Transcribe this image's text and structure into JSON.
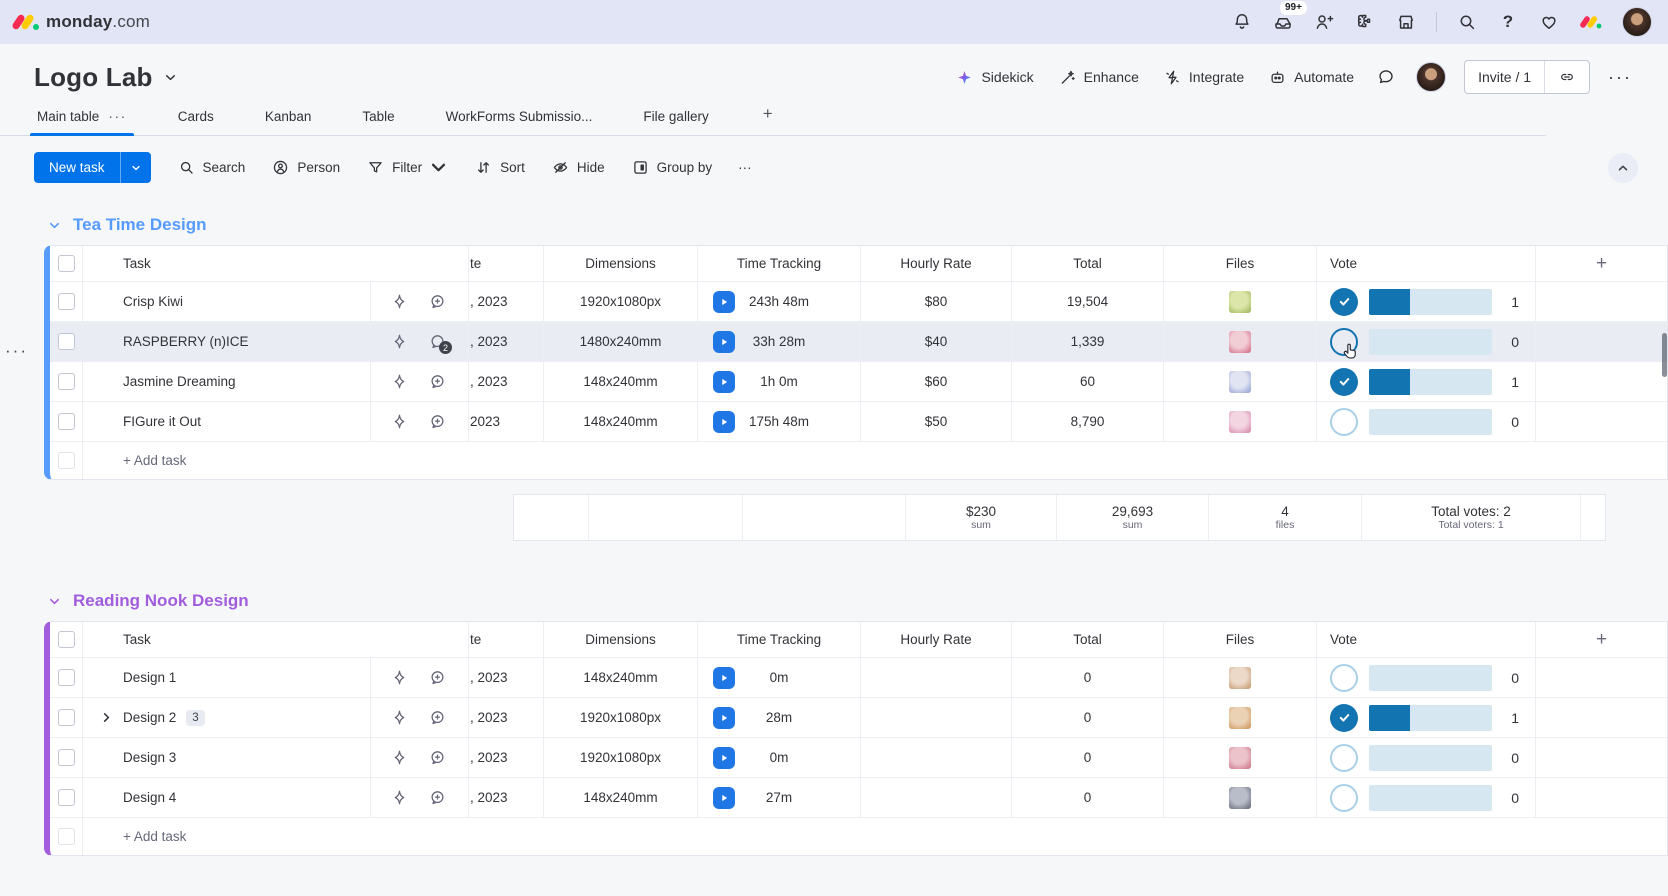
{
  "topbar": {
    "brand_bold": "monday",
    "brand_light": ".com",
    "notification_badge": "99+",
    "icons": [
      "bell-icon",
      "inbox-icon",
      "invite-members-icon",
      "apps-icon",
      "marketplace-icon",
      "search-icon",
      "help-icon",
      "whats-new-heart-icon",
      "monday-product-icon",
      "user-avatar"
    ]
  },
  "board": {
    "title": "Logo Lab",
    "actions": [
      {
        "label": "Sidekick",
        "icon": "sidekick-sparkle-icon"
      },
      {
        "label": "Enhance",
        "icon": "magic-wand-icon"
      },
      {
        "label": "Integrate",
        "icon": "integrate-icon"
      },
      {
        "label": "Automate",
        "icon": "automate-robot-icon"
      }
    ],
    "invite_label": "Invite / 1",
    "more_label": "···"
  },
  "tabs": {
    "items": [
      {
        "label": "Main table",
        "active": true,
        "menu": "···"
      },
      {
        "label": "Cards",
        "active": false
      },
      {
        "label": "Kanban",
        "active": false
      },
      {
        "label": "Table",
        "active": false
      },
      {
        "label": "WorkForms Submissio...",
        "active": false
      },
      {
        "label": "File gallery",
        "active": false
      }
    ],
    "add_label": "+"
  },
  "toolbar": {
    "new_task_label": "New task",
    "items": [
      {
        "label": "Search",
        "icon": "search-icon"
      },
      {
        "label": "Person",
        "icon": "person-icon"
      },
      {
        "label": "Filter",
        "icon": "filter-icon",
        "chevron": true
      },
      {
        "label": "Sort",
        "icon": "sort-icon"
      },
      {
        "label": "Hide",
        "icon": "hide-icon"
      },
      {
        "label": "Group by",
        "icon": "group-by-icon"
      }
    ],
    "more_label": "···"
  },
  "columns": [
    {
      "key": "cb",
      "label": ""
    },
    {
      "key": "task",
      "label": "Task"
    },
    {
      "key": "date",
      "label": "te"
    },
    {
      "key": "dims",
      "label": "Dimensions"
    },
    {
      "key": "time",
      "label": "Time Tracking"
    },
    {
      "key": "rate",
      "label": "Hourly Rate"
    },
    {
      "key": "total",
      "label": "Total"
    },
    {
      "key": "files",
      "label": "Files"
    },
    {
      "key": "vote",
      "label": "Vote"
    },
    {
      "key": "add",
      "label": "+"
    }
  ],
  "groups": [
    {
      "name": "Tea Time Design",
      "color": "#579bfc",
      "add_task_label": "+ Add task",
      "rows": [
        {
          "task": "Crisp Kiwi",
          "date": ", 2023",
          "dimensions": "1920x1080px",
          "time": "243h 48m",
          "rate": "$80",
          "total": "19,504",
          "voted": true,
          "vote_count": "1",
          "thumb": [
            "#dce6a9",
            "#9ab254"
          ]
        },
        {
          "task": "RASPBERRY (n)ICE",
          "date": ", 2023",
          "dimensions": "1480x240mm",
          "time": "33h 28m",
          "rate": "$40",
          "total": "1,339",
          "voted": false,
          "vote_count": "0",
          "thumb": [
            "#f1cdd6",
            "#d2607e"
          ],
          "chat_badge": "2",
          "hover": true
        },
        {
          "task": "Jasmine Dreaming",
          "date": ", 2023",
          "dimensions": "148x240mm",
          "time": "1h 0m",
          "rate": "$60",
          "total": "60",
          "voted": true,
          "vote_count": "1",
          "thumb": [
            "#e0e4f3",
            "#8f9bd0"
          ]
        },
        {
          "task": "FIGure it Out",
          "date": "2023",
          "dimensions": "148x240mm",
          "time": "175h 48m",
          "rate": "$50",
          "total": "8,790",
          "voted": false,
          "vote_count": "0",
          "thumb": [
            "#f3d4e1",
            "#d37fa8"
          ]
        }
      ],
      "summary": {
        "rate": "$230",
        "rate_label": "sum",
        "total": "29,693",
        "total_label": "sum",
        "files": "4",
        "files_label": "files",
        "votes": "Total votes: 2",
        "voters": "Total voters: 1"
      }
    },
    {
      "name": "Reading Nook Design",
      "color": "#a25ddc",
      "add_task_label": "+ Add task",
      "rows": [
        {
          "task": "Design 1",
          "date": ", 2023",
          "dimensions": "148x240mm",
          "time": "0m",
          "rate": "",
          "total": "0",
          "voted": false,
          "vote_count": "0",
          "thumb": [
            "#ecd9c8",
            "#c09064"
          ]
        },
        {
          "task": "Design 2",
          "subitems": "3",
          "expand": true,
          "date": ", 2023",
          "dimensions": "1920x1080px",
          "time": "28m",
          "rate": "",
          "total": "0",
          "voted": true,
          "vote_count": "1",
          "thumb": [
            "#ecd2b5",
            "#c98f4f"
          ]
        },
        {
          "task": "Design 3",
          "date": ", 2023",
          "dimensions": "1920x1080px",
          "time": "0m",
          "rate": "",
          "total": "0",
          "voted": false,
          "vote_count": "0",
          "thumb": [
            "#ecc3cb",
            "#c96a7e"
          ]
        },
        {
          "task": "Design 4",
          "date": ", 2023",
          "dimensions": "148x240mm",
          "time": "27m",
          "rate": "",
          "total": "0",
          "voted": false,
          "vote_count": "0",
          "thumb": [
            "#b9bdc9",
            "#5a6070"
          ]
        }
      ]
    }
  ],
  "colors": {
    "accent_blue": "#0073ea",
    "topbar_bg": "#e2e5f5",
    "group_blue": "#579bfc",
    "group_purple": "#a25ddc",
    "vote_fill": "#1374b2",
    "vote_track": "#d6e7f2"
  },
  "vote_fill_pct_when_voted": 33
}
